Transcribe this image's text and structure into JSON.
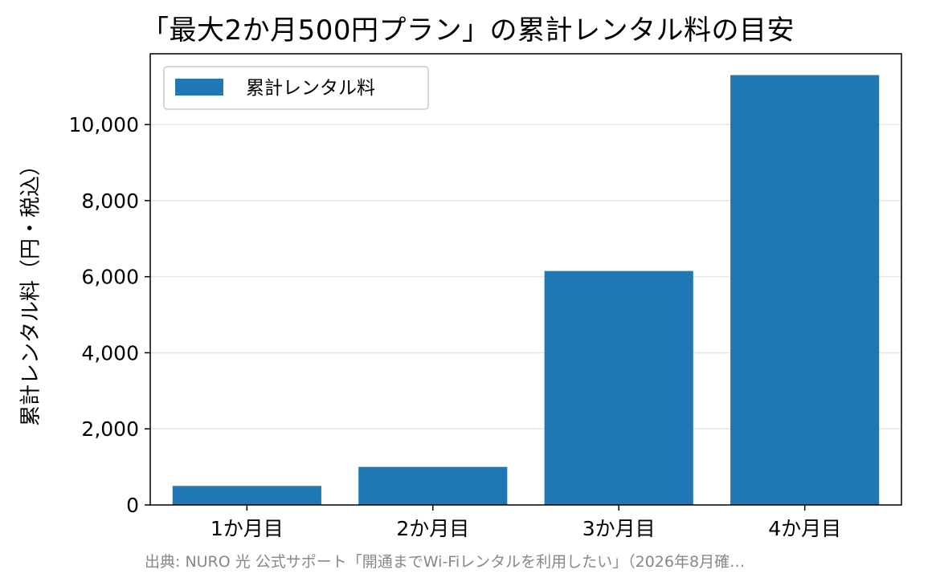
{
  "chart_data": {
    "type": "bar",
    "title": "「最大2か月500円プラン」の累計レンタル料の目安",
    "xlabel": "",
    "ylabel": "累計レンタル料（円・税込）",
    "categories": [
      "1か月目",
      "2か月目",
      "3か月目",
      "4か月目"
    ],
    "series": [
      {
        "name": "累計レンタル料",
        "values": [
          500,
          1000,
          6150,
          11300
        ],
        "color": "#1f77b4"
      }
    ],
    "ylim": [
      0,
      11860
    ],
    "yticks": [
      0,
      2000,
      4000,
      6000,
      8000,
      10000
    ],
    "ytick_labels": [
      "0",
      "2,000",
      "4,000",
      "6,000",
      "8,000",
      "10,000"
    ],
    "grid": "y-major",
    "legend_position": "top-left",
    "source": "出典: NURO 光 公式サポート「開通までWi-Fiレンタルを利用したい」（2026年8月確…"
  }
}
